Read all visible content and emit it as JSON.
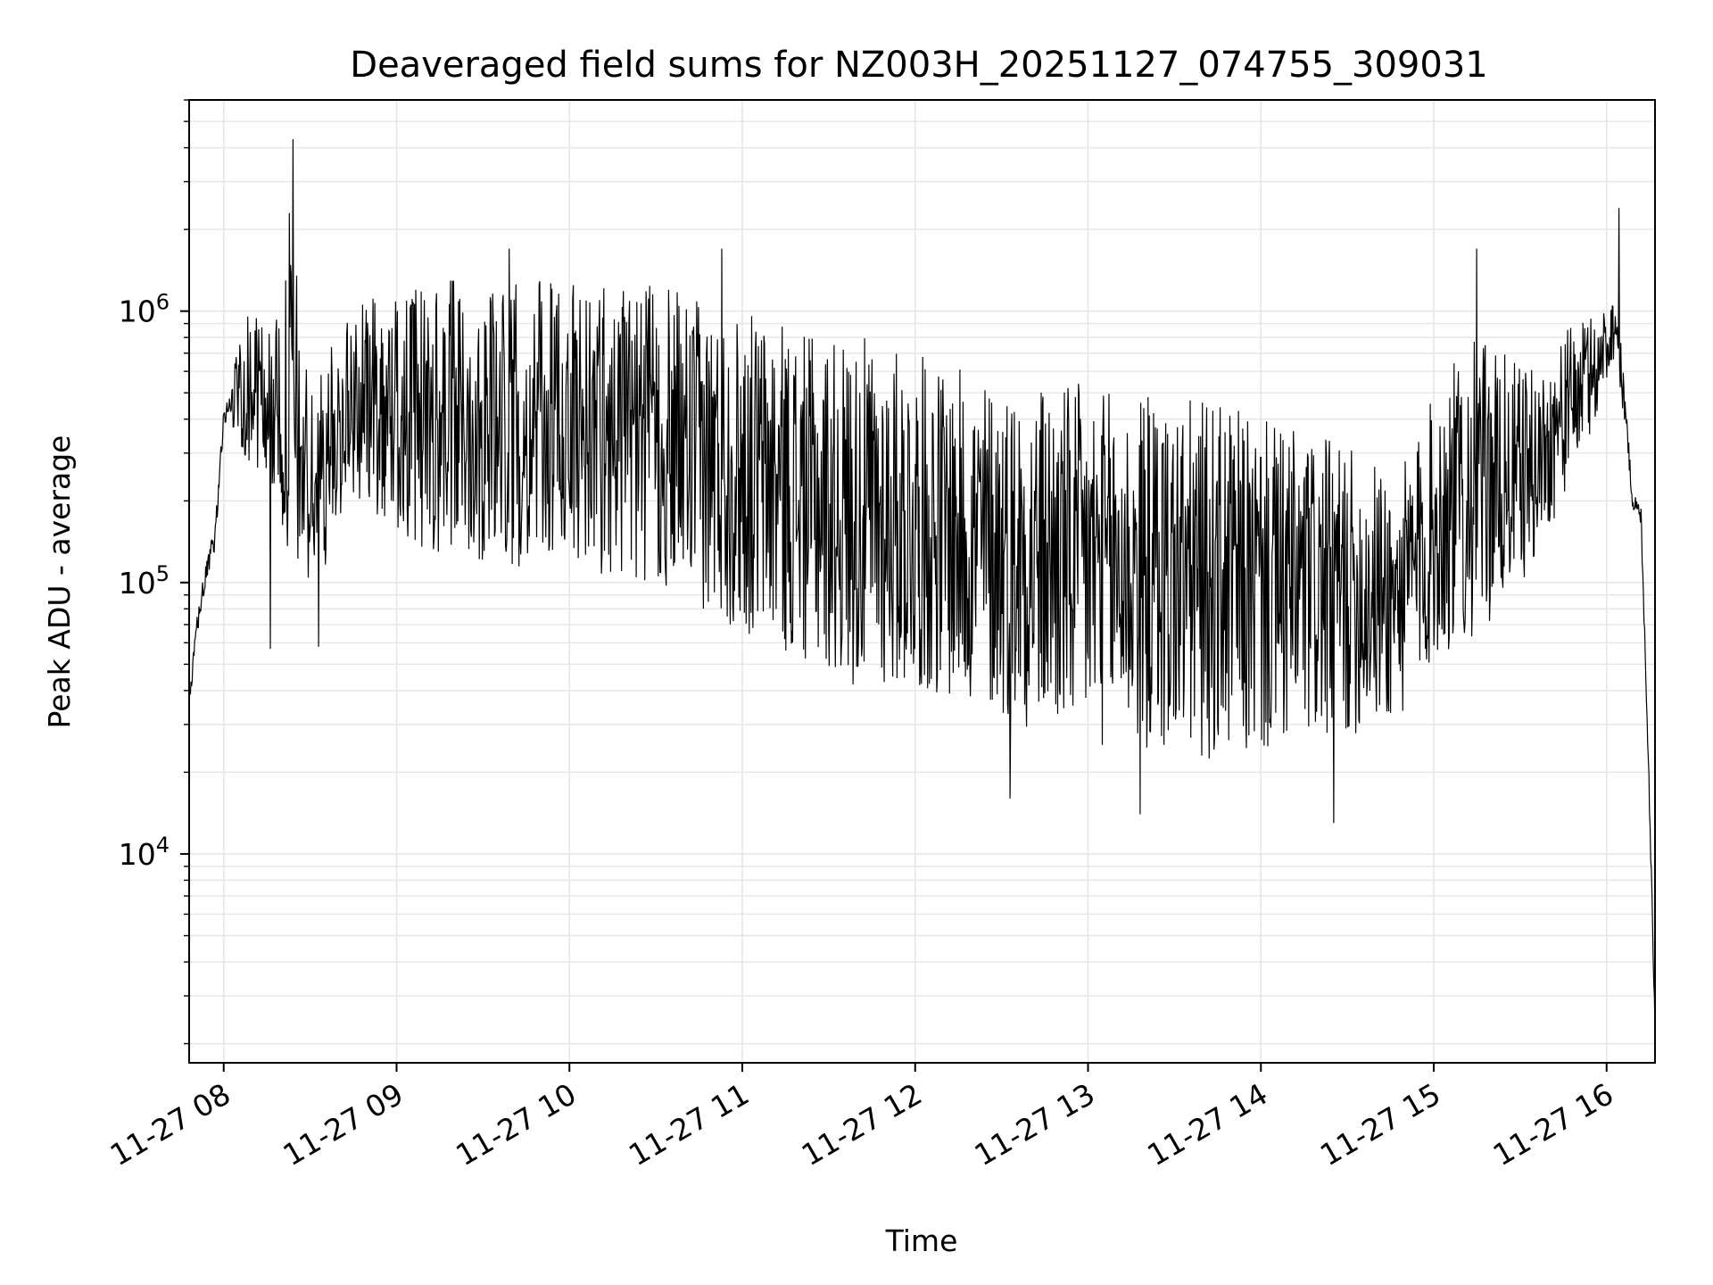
{
  "chart_data": {
    "type": "line",
    "title": "Deaveraged field sums for NZ003H_20251127_074755_309031",
    "xlabel": "Time",
    "ylabel": "Peak ADU - average",
    "yscale": "log",
    "ylim": [
      1700,
      6000000
    ],
    "xlim_hours": [
      7.8,
      16.28
    ],
    "line_color": "#000000",
    "grid_color": "#e6e6e6",
    "x_ticks": [
      {
        "value": 8,
        "label": "11-27 08"
      },
      {
        "value": 9,
        "label": "11-27 09"
      },
      {
        "value": 10,
        "label": "11-27 10"
      },
      {
        "value": 11,
        "label": "11-27 11"
      },
      {
        "value": 12,
        "label": "11-27 12"
      },
      {
        "value": 13,
        "label": "11-27 13"
      },
      {
        "value": 14,
        "label": "11-27 14"
      },
      {
        "value": 15,
        "label": "11-27 15"
      },
      {
        "value": 16,
        "label": "11-27 16"
      }
    ],
    "y_ticks": [
      {
        "value": 10000,
        "base": "10",
        "exp": "4"
      },
      {
        "value": 100000,
        "base": "10",
        "exp": "5"
      },
      {
        "value": 1000000,
        "base": "10",
        "exp": "6"
      }
    ],
    "series": [
      {
        "name": "Peak ADU - average",
        "note": "dense noisy trace; envelope points in data units (hours, ADU)",
        "x": [
          7.8,
          7.85,
          7.9,
          7.95,
          8.0,
          8.1,
          8.2,
          8.3,
          8.4,
          8.5,
          8.6,
          8.7,
          8.8,
          9.0,
          9.2,
          9.5,
          9.8,
          10.0,
          10.3,
          10.6,
          10.9,
          11.1,
          11.4,
          11.7,
          12.0,
          12.3,
          12.6,
          12.9,
          13.2,
          13.5,
          13.8,
          14.0,
          14.3,
          14.6,
          14.8,
          15.0,
          15.2,
          15.4,
          15.6,
          15.8,
          15.95,
          16.05,
          16.1,
          16.15,
          16.2,
          16.24,
          16.28
        ],
        "upper": [
          35000,
          90000,
          130000,
          200000,
          550000,
          1000000,
          1000000,
          900000,
          1800000,
          500000,
          700000,
          900000,
          1100000,
          1200000,
          1300000,
          1300000,
          1300000,
          1300000,
          1300000,
          1200000,
          1000000,
          1000000,
          800000,
          800000,
          700000,
          600000,
          550000,
          550000,
          500000,
          500000,
          450000,
          400000,
          350000,
          300000,
          250000,
          500000,
          800000,
          700000,
          600000,
          900000,
          1000000,
          1200000,
          600000,
          230000,
          200000,
          30000,
          3000
        ],
        "lower": [
          35000,
          60000,
          90000,
          110000,
          300000,
          300000,
          250000,
          200000,
          100000,
          90000,
          120000,
          200000,
          200000,
          150000,
          120000,
          120000,
          110000,
          120000,
          100000,
          90000,
          70000,
          60000,
          50000,
          40000,
          40000,
          35000,
          30000,
          25000,
          25000,
          22000,
          22000,
          22000,
          25000,
          28000,
          30000,
          50000,
          60000,
          80000,
          120000,
          250000,
          400000,
          700000,
          400000,
          180000,
          150000,
          20000,
          2000
        ],
        "spikes": [
          {
            "x": 8.4,
            "y": 4300000
          },
          {
            "x": 8.38,
            "y": 2300000
          },
          {
            "x": 8.27,
            "y": 57000
          },
          {
            "x": 8.55,
            "y": 58000
          },
          {
            "x": 9.65,
            "y": 1700000
          },
          {
            "x": 10.88,
            "y": 1700000
          },
          {
            "x": 12.55,
            "y": 16000
          },
          {
            "x": 13.3,
            "y": 14000
          },
          {
            "x": 14.42,
            "y": 13000
          },
          {
            "x": 15.25,
            "y": 1700000
          },
          {
            "x": 16.07,
            "y": 2400000
          }
        ]
      }
    ]
  }
}
